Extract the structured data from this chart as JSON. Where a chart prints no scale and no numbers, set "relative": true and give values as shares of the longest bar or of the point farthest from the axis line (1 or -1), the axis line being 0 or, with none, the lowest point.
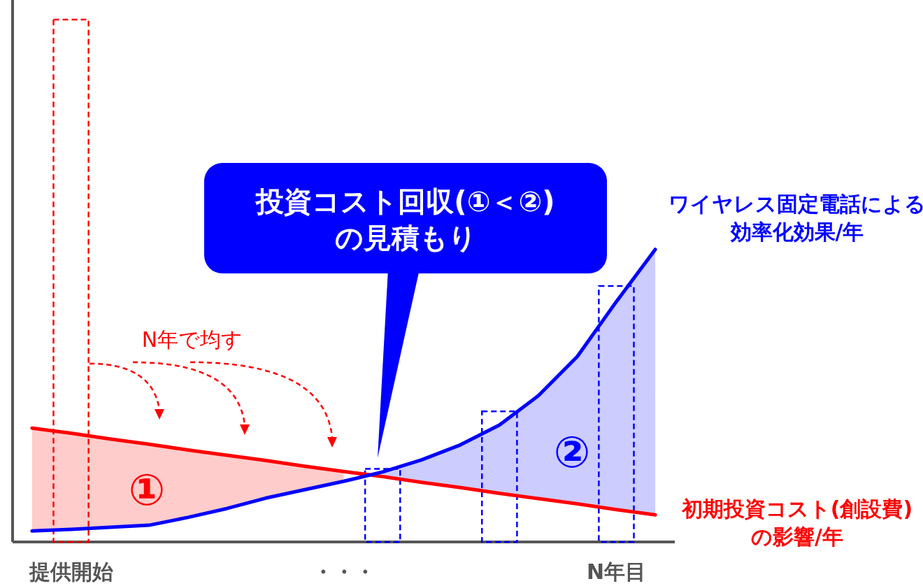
{
  "chart_data": {
    "type": "line",
    "relative": true,
    "legend": false,
    "marker": "none",
    "categories": [
      null,
      "提供開始",
      null,
      null,
      null,
      null,
      null,
      null,
      "・・・",
      null,
      null,
      null,
      null,
      null,
      null,
      "N年目",
      null
    ],
    "series": [
      {
        "type": "bar",
        "color": "#ff0000",
        "line_style": "dashed",
        "values": [
          null,
          1,
          null,
          null,
          null,
          null,
          null,
          null,
          null,
          null,
          null,
          null,
          null,
          null,
          null,
          null,
          null
        ]
      },
      {
        "type": "bar",
        "color": "#0000ff",
        "line_style": "dashed",
        "values": [
          null,
          null,
          null,
          null,
          null,
          null,
          null,
          null,
          null,
          0.14,
          null,
          null,
          0.25,
          null,
          null,
          0.49,
          null
        ]
      },
      {
        "type": "line",
        "name": "初期投資コスト(創設費)の影響/年",
        "color": "#ff0000",
        "line_style": "solid",
        "values": [
          0.218,
          0.208,
          0.197,
          0.187,
          0.176,
          0.166,
          0.156,
          0.145,
          0.135,
          0.125,
          0.114,
          0.104,
          0.093,
          0.083,
          0.073,
          0.062,
          0.052
        ],
        "lower": [
          0.021,
          0.024,
          0.028,
          0.032,
          0.047,
          0.064,
          0.084,
          0.1,
          0.116,
          null,
          null,
          null,
          null,
          null,
          null,
          null,
          null
        ],
        "upper": [
          0.218,
          0.208,
          0.197,
          0.187,
          0.176,
          0.166,
          0.156,
          0.145,
          0.135,
          null,
          null,
          null,
          null,
          null,
          null,
          null,
          null
        ]
      },
      {
        "type": "line",
        "name": "ワイヤレス固定電話による効率化効果/年",
        "color": "#0000ff",
        "line_style": "solid",
        "values": [
          0.021,
          0.024,
          0.028,
          0.032,
          0.047,
          0.064,
          0.084,
          0.1,
          0.116,
          0.134,
          0.157,
          0.186,
          0.224,
          0.28,
          0.355,
          0.46,
          0.56
        ],
        "lower": [
          null,
          null,
          null,
          null,
          null,
          null,
          null,
          null,
          null,
          0.125,
          0.114,
          0.104,
          0.093,
          0.083,
          0.073,
          0.062,
          0.052
        ],
        "upper": [
          null,
          null,
          null,
          null,
          null,
          null,
          null,
          null,
          null,
          0.134,
          0.157,
          0.186,
          0.224,
          0.28,
          0.355,
          0.46,
          0.56
        ]
      }
    ],
    "annotations": [
      "N年で均す",
      "①",
      "②",
      "投資コスト回収(①＜②)\nの見積もり"
    ]
  }
}
